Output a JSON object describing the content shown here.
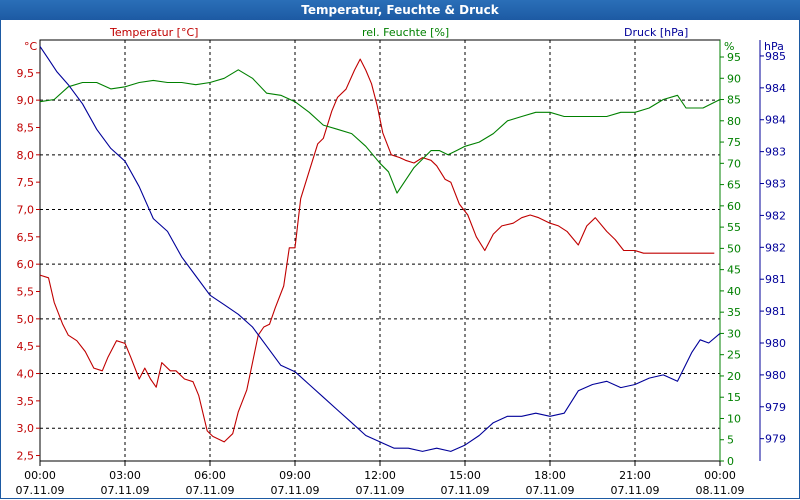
{
  "chart_data": {
    "type": "line",
    "title": "Temperatur, Feuchte & Druck",
    "x_labels": [
      {
        "time": "00:00",
        "date": "07.11.09"
      },
      {
        "time": "03:00",
        "date": "07.11.09"
      },
      {
        "time": "06:00",
        "date": "07.11.09"
      },
      {
        "time": "09:00",
        "date": "07.11.09"
      },
      {
        "time": "12:00",
        "date": "07.11.09"
      },
      {
        "time": "15:00",
        "date": "07.11.09"
      },
      {
        "time": "18:00",
        "date": "07.11.09"
      },
      {
        "time": "21:00",
        "date": "07.11.09"
      },
      {
        "time": "00:00",
        "date": "08.11.09"
      }
    ],
    "xlim": [
      0,
      24
    ],
    "axes": {
      "temperature": {
        "label": "Temperatur [°C]",
        "unit": "°C",
        "color": "#c00000",
        "ylim": [
          2.4,
          10.1
        ],
        "ticks": [
          "2,5",
          "3,0",
          "3,5",
          "4,0",
          "4,5",
          "5,0",
          "5,5",
          "6,0",
          "6,5",
          "7,0",
          "7,5",
          "8,0",
          "8,5",
          "9,0",
          "9,5"
        ]
      },
      "humidity": {
        "label": "rel. Feuchte [%]",
        "unit": "%",
        "color": "#008000",
        "ylim": [
          0,
          99
        ],
        "ticks": [
          "0",
          "5",
          "10",
          "15",
          "20",
          "25",
          "30",
          "35",
          "40",
          "45",
          "50",
          "55",
          "60",
          "65",
          "70",
          "75",
          "80",
          "85",
          "90",
          "95"
        ]
      },
      "pressure": {
        "label": "Druck [hPa]",
        "unit": "hPa",
        "color": "#000099",
        "ylim": [
          978.6,
          985.2
        ],
        "ticks": [
          "979",
          "979",
          "980",
          "980",
          "981",
          "981",
          "982",
          "982",
          "983",
          "983",
          "984",
          "984",
          "985"
        ]
      }
    },
    "series": [
      {
        "name": "Temperatur",
        "axis": "temperature",
        "x": [
          0,
          0.3,
          0.5,
          0.8,
          1.0,
          1.3,
          1.6,
          1.9,
          2.2,
          2.4,
          2.7,
          3.0,
          3.2,
          3.5,
          3.7,
          3.9,
          4.1,
          4.3,
          4.6,
          4.8,
          5.1,
          5.4,
          5.6,
          5.9,
          6.1,
          6.3,
          6.5,
          6.8,
          7.0,
          7.3,
          7.5,
          7.7,
          7.9,
          8.1,
          8.3,
          8.6,
          8.8,
          9.0,
          9.2,
          9.5,
          9.8,
          10.0,
          10.3,
          10.5,
          10.8,
          11.1,
          11.3,
          11.5,
          11.7,
          11.9,
          12.1,
          12.4,
          12.7,
          12.9,
          13.2,
          13.5,
          13.8,
          14.0,
          14.3,
          14.5,
          14.8,
          15.1,
          15.4,
          15.7,
          16.0,
          16.3,
          16.7,
          17.0,
          17.3,
          17.6,
          18.0,
          18.3,
          18.6,
          19.0,
          19.3,
          19.6,
          20.0,
          20.3,
          20.6,
          21.0,
          21.3,
          21.6,
          22.0,
          22.3,
          22.6,
          22.9,
          23.2,
          23.5,
          23.8
        ],
        "values": [
          5.8,
          5.75,
          5.3,
          4.9,
          4.7,
          4.6,
          4.4,
          4.1,
          4.05,
          4.3,
          4.6,
          4.55,
          4.3,
          3.9,
          4.1,
          3.9,
          3.75,
          4.2,
          4.05,
          4.05,
          3.9,
          3.85,
          3.6,
          2.95,
          2.85,
          2.8,
          2.75,
          2.9,
          3.3,
          3.7,
          4.2,
          4.7,
          4.85,
          4.9,
          5.2,
          5.6,
          6.3,
          6.3,
          7.2,
          7.7,
          8.2,
          8.3,
          8.8,
          9.05,
          9.2,
          9.55,
          9.75,
          9.55,
          9.3,
          8.9,
          8.4,
          8.0,
          7.95,
          7.9,
          7.85,
          7.95,
          7.9,
          7.8,
          7.55,
          7.5,
          7.1,
          6.9,
          6.5,
          6.25,
          6.55,
          6.7,
          6.75,
          6.85,
          6.9,
          6.85,
          6.75,
          6.7,
          6.6,
          6.35,
          6.7,
          6.85,
          6.6,
          6.45,
          6.25,
          6.25,
          6.2,
          6.2,
          6.2,
          6.2,
          6.2,
          6.2,
          6.2,
          6.2,
          6.2
        ]
      },
      {
        "name": "rel. Feuchte",
        "axis": "humidity",
        "x": [
          0,
          0.5,
          1.0,
          1.5,
          2.0,
          2.5,
          3.0,
          3.5,
          4.0,
          4.5,
          5.0,
          5.5,
          6.0,
          6.5,
          7.0,
          7.5,
          8.0,
          8.5,
          9.0,
          9.5,
          10.0,
          10.5,
          11.0,
          11.5,
          12.0,
          12.3,
          12.6,
          12.9,
          13.2,
          13.5,
          13.8,
          14.1,
          14.4,
          14.7,
          15.0,
          15.5,
          16.0,
          16.5,
          17.0,
          17.5,
          18.0,
          18.5,
          19.0,
          19.5,
          20.0,
          20.5,
          21.0,
          21.5,
          22.0,
          22.5,
          22.8,
          23.1,
          23.4,
          23.7,
          24.0
        ],
        "values": [
          84.5,
          85,
          88,
          89,
          89,
          87.5,
          88,
          89,
          89.5,
          89,
          89,
          88.5,
          89,
          90,
          92,
          90,
          86.5,
          86,
          84.5,
          82,
          79,
          78,
          77,
          74,
          70,
          68,
          63,
          66,
          69,
          71,
          73,
          73,
          72,
          73,
          74,
          75,
          77,
          80,
          81,
          82,
          82,
          81,
          81,
          81,
          81,
          82,
          82,
          83,
          85,
          86,
          83,
          83,
          83,
          84,
          85
        ]
      },
      {
        "name": "Druck",
        "axis": "pressure",
        "x": [
          0,
          0.3,
          0.6,
          1.0,
          1.5,
          2.0,
          2.5,
          3.0,
          3.5,
          4.0,
          4.5,
          5.0,
          5.5,
          6.0,
          6.5,
          7.0,
          7.5,
          8.0,
          8.5,
          9.0,
          9.5,
          10.0,
          10.5,
          11.0,
          11.5,
          12.0,
          12.5,
          13.0,
          13.5,
          14.0,
          14.5,
          15.0,
          15.5,
          16.0,
          16.5,
          17.0,
          17.5,
          18.0,
          18.5,
          19.0,
          19.5,
          20.0,
          20.5,
          21.0,
          21.5,
          22.0,
          22.5,
          23.0,
          23.3,
          23.6,
          24.0
        ],
        "values": [
          985.1,
          984.9,
          984.7,
          984.5,
          984.2,
          983.8,
          983.5,
          983.3,
          982.9,
          982.4,
          982.2,
          981.8,
          981.5,
          981.2,
          981.05,
          980.9,
          980.7,
          980.4,
          980.1,
          980.0,
          979.8,
          979.6,
          979.4,
          979.2,
          979.0,
          978.9,
          978.8,
          978.8,
          978.75,
          978.8,
          978.75,
          978.85,
          979.0,
          979.2,
          979.3,
          979.3,
          979.35,
          979.3,
          979.35,
          979.7,
          979.8,
          979.85,
          979.75,
          979.8,
          979.9,
          979.95,
          979.85,
          980.3,
          980.5,
          980.45,
          980.6
        ]
      }
    ]
  }
}
